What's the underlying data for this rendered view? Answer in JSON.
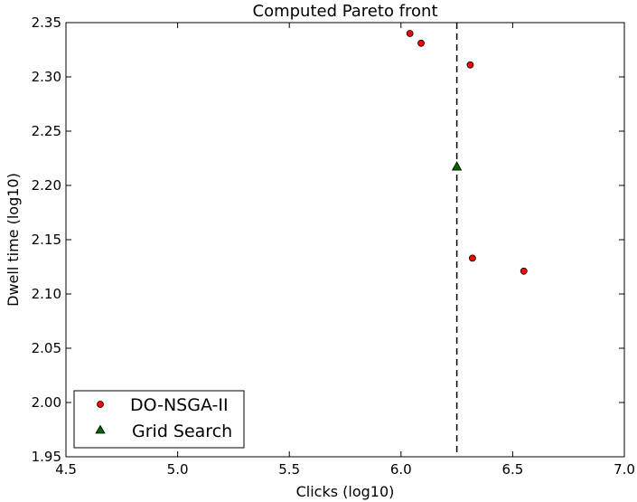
{
  "chart_data": {
    "type": "scatter",
    "title": "Computed Pareto front",
    "xlabel": "Clicks (log10)",
    "ylabel": "Dwell time (log10)",
    "xlim": [
      4.5,
      7.0
    ],
    "ylim": [
      1.95,
      2.35
    ],
    "x_ticks": [
      "4.5",
      "5.0",
      "5.5",
      "6.0",
      "6.5",
      "7.0"
    ],
    "y_ticks": [
      "1.95",
      "2.00",
      "2.05",
      "2.10",
      "2.15",
      "2.20",
      "2.25",
      "2.30",
      "2.35"
    ],
    "grid": false,
    "legend_position": "lower-left",
    "series": [
      {
        "name": "DO-NSGA-II",
        "marker": "circle",
        "color": "#ff0000",
        "points": [
          {
            "x": 6.04,
            "y": 2.34
          },
          {
            "x": 6.09,
            "y": 2.331
          },
          {
            "x": 6.31,
            "y": 2.311
          },
          {
            "x": 6.32,
            "y": 2.133
          },
          {
            "x": 6.55,
            "y": 2.121
          }
        ]
      },
      {
        "name": "Grid Search",
        "marker": "triangle",
        "color": "#006400",
        "points": [
          {
            "x": 6.25,
            "y": 2.217
          }
        ]
      }
    ],
    "reference_lines": [
      {
        "orientation": "vertical",
        "x": 6.25,
        "style": "dashed",
        "color": "#000000"
      }
    ]
  }
}
